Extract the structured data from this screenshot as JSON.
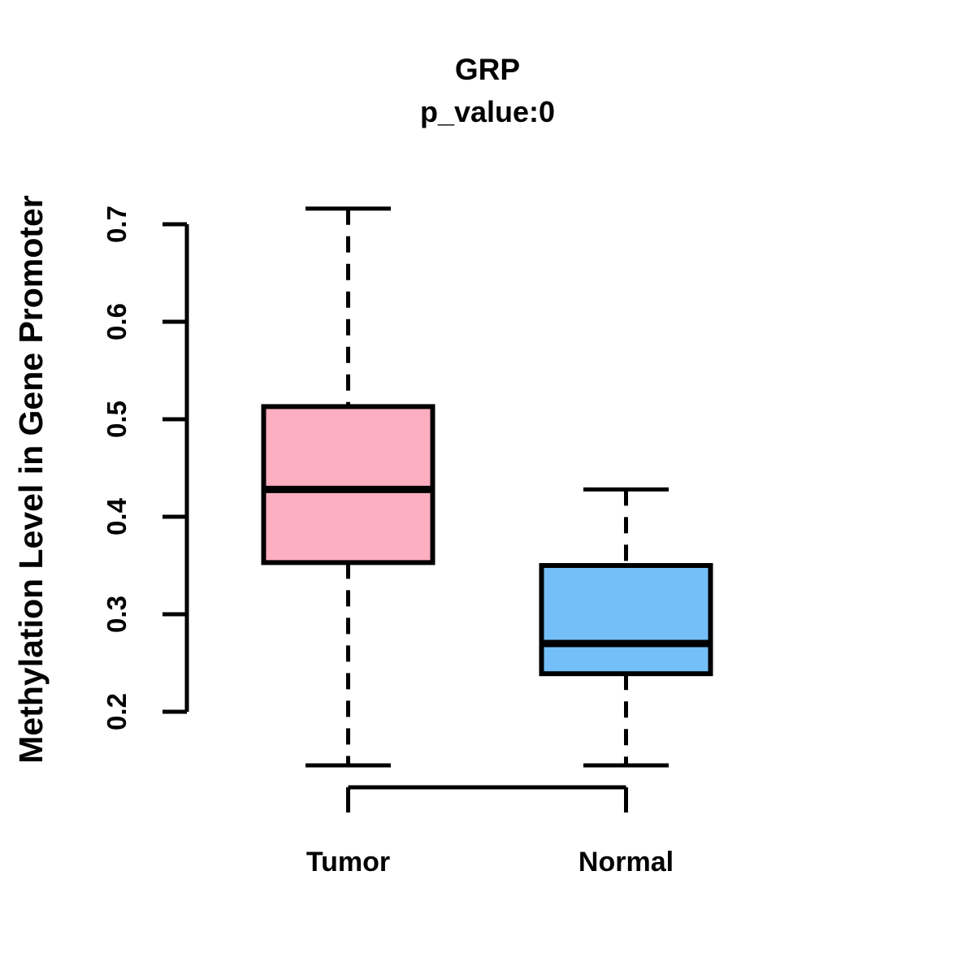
{
  "figure": {
    "background": "#ffffff",
    "stroke_color": "#000000"
  },
  "chart_data": {
    "type": "boxplot",
    "title": "GRP",
    "subtitle": "p_value:0",
    "ylabel": "Methylation Level in Gene Promoter",
    "xlabel": "",
    "grid": false,
    "legend": false,
    "y_tick_labels": [
      "0.2",
      "0.3",
      "0.4",
      "0.5",
      "0.6",
      "0.7"
    ],
    "y_ticks": [
      0.2,
      0.3,
      0.4,
      0.5,
      0.6,
      0.7
    ],
    "ylim": [
      0.145,
      0.716
    ],
    "categories": [
      "Tumor",
      "Normal"
    ],
    "series": [
      {
        "name": "Tumor",
        "fill_color": "#FCAFC1",
        "whisker_low": 0.145,
        "q1": 0.353,
        "median": 0.428,
        "q3": 0.513,
        "whisker_high": 0.716
      },
      {
        "name": "Normal",
        "fill_color": "#74BFF7",
        "whisker_low": 0.145,
        "q1": 0.239,
        "median": 0.27,
        "q3": 0.35,
        "whisker_high": 0.428
      }
    ]
  }
}
